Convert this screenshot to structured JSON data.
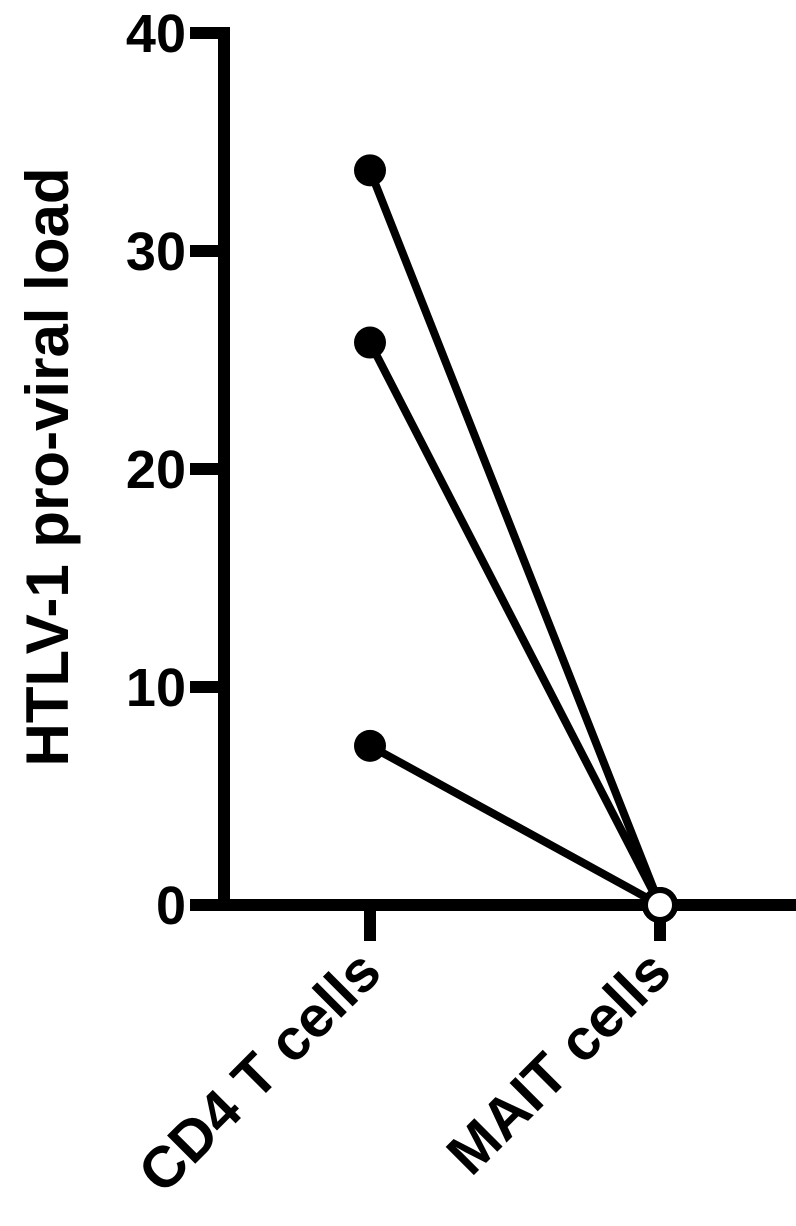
{
  "chart_data": {
    "type": "scatter",
    "subtype": "paired-before-after",
    "title": "",
    "xlabel": "",
    "ylabel": "HTLV-1 pro-viral load",
    "categories": [
      "CD4 T cells",
      "MAIT cells"
    ],
    "ylim": [
      0,
      40
    ],
    "yticks": [
      0,
      10,
      20,
      30,
      40
    ],
    "grid": false,
    "legend": "none",
    "marker_styles": [
      "filled-circle",
      "open-circle"
    ],
    "color": "#000000",
    "pairs": [
      {
        "values": [
          33.7,
          0
        ]
      },
      {
        "values": [
          25.8,
          0
        ]
      },
      {
        "values": [
          7.3,
          0
        ]
      }
    ]
  }
}
